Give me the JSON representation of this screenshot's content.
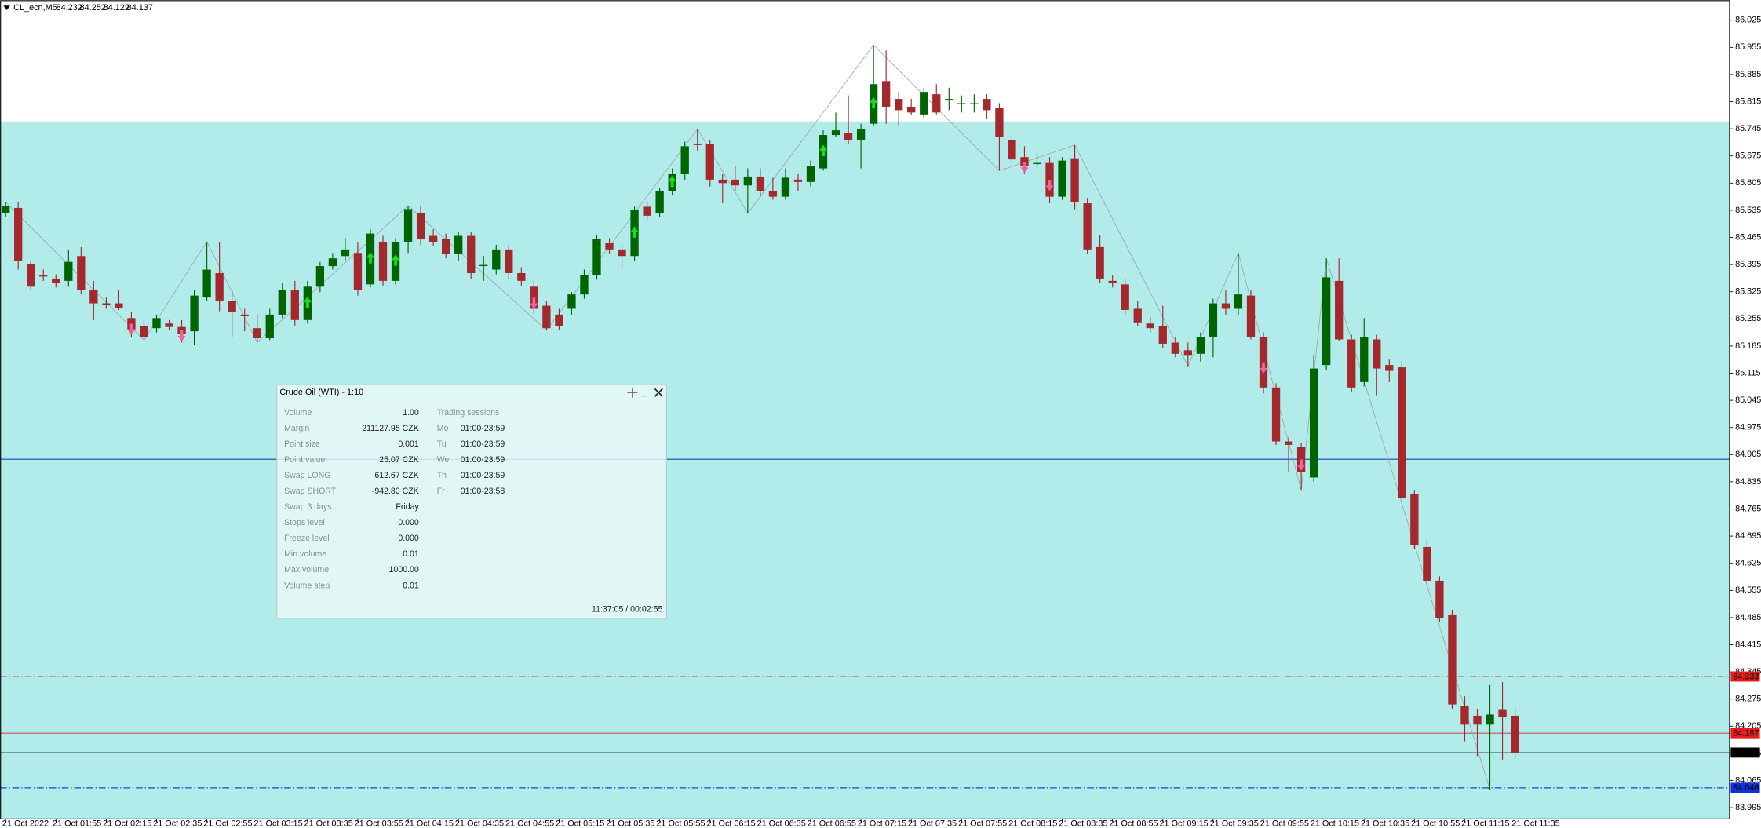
{
  "chart_data": {
    "type": "candlestick",
    "symbol": "CL_ecn,M5",
    "up_color": "#006400",
    "down_color": "#a4282c",
    "ylim": [
      83.966,
      86.071
    ],
    "yticks": [
      86.025,
      85.955,
      85.885,
      85.815,
      85.745,
      85.675,
      85.605,
      85.535,
      85.465,
      85.395,
      85.325,
      85.255,
      85.185,
      85.115,
      85.045,
      84.975,
      84.905,
      84.835,
      84.765,
      84.695,
      84.625,
      84.555,
      84.485,
      84.415,
      84.345,
      84.275,
      84.205,
      84.135,
      84.065,
      83.995
    ],
    "categories": [
      "21 Oct 2022",
      null,
      null,
      null,
      "21 Oct 01:55",
      null,
      null,
      null,
      "21 Oct 02:15",
      null,
      null,
      null,
      "21 Oct 02:35",
      null,
      null,
      null,
      "21 Oct 02:55",
      null,
      null,
      null,
      "21 Oct 03:15",
      null,
      null,
      null,
      "21 Oct 03:35",
      null,
      null,
      null,
      "21 Oct 03:55",
      null,
      null,
      null,
      "21 Oct 04:15",
      null,
      null,
      null,
      "21 Oct 04:35",
      null,
      null,
      null,
      "21 Oct 04:55",
      null,
      null,
      null,
      "21 Oct 05:15",
      null,
      null,
      null,
      "21 Oct 05:35",
      null,
      null,
      null,
      "21 Oct 05:55",
      null,
      null,
      null,
      "21 Oct 06:15",
      null,
      null,
      null,
      "21 Oct 06:35",
      null,
      null,
      null,
      "21 Oct 06:55",
      null,
      null,
      null,
      "21 Oct 07:15",
      null,
      null,
      null,
      "21 Oct 07:35",
      null,
      null,
      null,
      "21 Oct 07:55",
      null,
      null,
      null,
      "21 Oct 08:15",
      null,
      null,
      null,
      "21 Oct 08:35",
      null,
      null,
      null,
      "21 Oct 08:55",
      null,
      null,
      null,
      "21 Oct 09:15",
      null,
      null,
      null,
      "21 Oct 09:35",
      null,
      null,
      null,
      "21 Oct 09:55",
      null,
      null,
      null,
      "21 Oct 10:15",
      null,
      null,
      null,
      "21 Oct 10:35",
      null,
      null,
      null,
      "21 Oct 10:55",
      null,
      null,
      null,
      "21 Oct 11:15",
      null,
      null,
      null,
      "21 Oct 11:35"
    ],
    "candles": [
      [
        85.527,
        85.556,
        85.518,
        85.547
      ],
      [
        85.541,
        85.556,
        85.382,
        85.405
      ],
      [
        85.396,
        85.405,
        85.33,
        85.338
      ],
      [
        85.367,
        85.382,
        85.353,
        85.365
      ],
      [
        85.359,
        85.37,
        85.336,
        85.347
      ],
      [
        85.353,
        85.434,
        85.338,
        85.402
      ],
      [
        85.417,
        85.44,
        85.318,
        85.33
      ],
      [
        85.33,
        85.353,
        85.252,
        85.295
      ],
      [
        85.295,
        85.31,
        85.281,
        85.292
      ],
      [
        85.295,
        85.33,
        85.278,
        85.283
      ],
      [
        85.257,
        85.272,
        85.208,
        85.228
      ],
      [
        85.237,
        85.252,
        85.2,
        85.208
      ],
      [
        85.231,
        85.266,
        85.22,
        85.257
      ],
      [
        85.243,
        85.252,
        85.226,
        85.234
      ],
      [
        85.234,
        85.252,
        85.194,
        85.217
      ],
      [
        85.223,
        85.33,
        85.188,
        85.315
      ],
      [
        85.31,
        85.454,
        85.301,
        85.382
      ],
      [
        85.373,
        85.454,
        85.275,
        85.301
      ],
      [
        85.301,
        85.33,
        85.208,
        85.272
      ],
      [
        85.266,
        85.281,
        85.223,
        85.263
      ],
      [
        85.231,
        85.266,
        85.194,
        85.205
      ],
      [
        85.205,
        85.281,
        85.2,
        85.266
      ],
      [
        85.266,
        85.347,
        85.257,
        85.33
      ],
      [
        85.33,
        85.353,
        85.237,
        85.252
      ],
      [
        85.252,
        85.353,
        85.243,
        85.338
      ],
      [
        85.338,
        85.402,
        85.324,
        85.391
      ],
      [
        85.391,
        85.425,
        85.382,
        85.411
      ],
      [
        85.417,
        85.463,
        85.405,
        85.434
      ],
      [
        85.425,
        85.454,
        85.315,
        85.33
      ],
      [
        85.344,
        85.486,
        85.336,
        85.475
      ],
      [
        85.454,
        85.469,
        85.341,
        85.353
      ],
      [
        85.353,
        85.463,
        85.344,
        85.454
      ],
      [
        85.454,
        85.547,
        85.425,
        85.538
      ],
      [
        85.527,
        85.547,
        85.446,
        85.46
      ],
      [
        85.469,
        85.486,
        85.443,
        85.454
      ],
      [
        85.46,
        85.475,
        85.411,
        85.422
      ],
      [
        85.422,
        85.48,
        85.405,
        85.469
      ],
      [
        85.469,
        85.48,
        85.359,
        85.373
      ],
      [
        85.394,
        85.417,
        85.353,
        85.394
      ],
      [
        85.382,
        85.446,
        85.37,
        85.434
      ],
      [
        85.434,
        85.446,
        85.359,
        85.373
      ],
      [
        85.373,
        85.388,
        85.341,
        85.353
      ],
      [
        85.338,
        85.353,
        85.266,
        85.281
      ],
      [
        85.289,
        85.301,
        85.226,
        85.231
      ],
      [
        85.266,
        85.281,
        85.226,
        85.237
      ],
      [
        85.281,
        85.324,
        85.266,
        85.318
      ],
      [
        85.318,
        85.382,
        85.307,
        85.367
      ],
      [
        85.367,
        85.472,
        85.356,
        85.46
      ],
      [
        85.451,
        85.463,
        85.422,
        85.434
      ],
      [
        85.434,
        85.446,
        85.382,
        85.417
      ],
      [
        85.417,
        85.544,
        85.405,
        85.535
      ],
      [
        85.544,
        85.559,
        85.51,
        85.521
      ],
      [
        85.527,
        85.593,
        85.518,
        85.585
      ],
      [
        85.585,
        85.643,
        85.573,
        85.628
      ],
      [
        85.628,
        85.712,
        85.614,
        85.7
      ],
      [
        85.706,
        85.744,
        85.689,
        85.703
      ],
      [
        85.706,
        85.715,
        85.596,
        85.614
      ],
      [
        85.614,
        85.628,
        85.553,
        85.605
      ],
      [
        85.614,
        85.648,
        85.585,
        85.599
      ],
      [
        85.599,
        85.643,
        85.527,
        85.622
      ],
      [
        85.622,
        85.643,
        85.57,
        85.585
      ],
      [
        85.585,
        85.619,
        85.562,
        85.57
      ],
      [
        85.57,
        85.643,
        85.562,
        85.619
      ],
      [
        85.614,
        85.628,
        85.585,
        85.608
      ],
      [
        85.608,
        85.663,
        85.596,
        85.648
      ],
      [
        85.643,
        85.741,
        85.637,
        85.729
      ],
      [
        85.729,
        85.787,
        85.724,
        85.741
      ],
      [
        85.735,
        85.831,
        85.706,
        85.715
      ],
      [
        85.715,
        85.758,
        85.643,
        85.744
      ],
      [
        85.758,
        85.961,
        85.753,
        85.86
      ],
      [
        85.868,
        85.947,
        85.758,
        85.802
      ],
      [
        85.822,
        85.84,
        85.753,
        85.793
      ],
      [
        85.802,
        85.822,
        85.782,
        85.787
      ],
      [
        85.782,
        85.851,
        85.773,
        85.84
      ],
      [
        85.834,
        85.86,
        85.782,
        85.787
      ],
      [
        85.822,
        85.851,
        85.793,
        85.822
      ],
      [
        85.811,
        85.831,
        85.787,
        85.811
      ],
      [
        85.811,
        85.834,
        85.787,
        85.811
      ],
      [
        85.822,
        85.834,
        85.77,
        85.793
      ],
      [
        85.799,
        85.811,
        85.637,
        85.724
      ],
      [
        85.715,
        85.729,
        85.657,
        85.666
      ],
      [
        85.672,
        85.7,
        85.628,
        85.648
      ],
      [
        85.657,
        85.689,
        85.643,
        85.657
      ],
      [
        85.657,
        85.672,
        85.553,
        85.57
      ],
      [
        85.57,
        85.672,
        85.562,
        85.663
      ],
      [
        85.669,
        85.703,
        85.538,
        85.556
      ],
      [
        85.553,
        85.567,
        85.422,
        85.434
      ],
      [
        85.44,
        85.472,
        85.347,
        85.359
      ],
      [
        85.353,
        85.367,
        85.336,
        85.347
      ],
      [
        85.344,
        85.359,
        85.266,
        85.278
      ],
      [
        85.281,
        85.301,
        85.237,
        85.246
      ],
      [
        85.243,
        85.26,
        85.22,
        85.231
      ],
      [
        85.237,
        85.289,
        85.179,
        85.191
      ],
      [
        85.194,
        85.208,
        85.156,
        85.165
      ],
      [
        85.174,
        85.194,
        85.133,
        85.162
      ],
      [
        85.165,
        85.22,
        85.145,
        85.208
      ],
      [
        85.208,
        85.307,
        85.156,
        85.295
      ],
      [
        85.295,
        85.33,
        85.266,
        85.281
      ],
      [
        85.281,
        85.425,
        85.266,
        85.318
      ],
      [
        85.315,
        85.33,
        85.202,
        85.208
      ],
      [
        85.208,
        85.22,
        85.063,
        85.078
      ],
      [
        85.078,
        85.089,
        84.93,
        84.939
      ],
      [
        84.939,
        84.95,
        84.861,
        84.93
      ],
      [
        84.924,
        84.936,
        84.814,
        84.861
      ],
      [
        84.846,
        85.162,
        84.835,
        85.127
      ],
      [
        85.136,
        85.411,
        85.124,
        85.362
      ],
      [
        85.353,
        85.411,
        85.197,
        85.202
      ],
      [
        85.202,
        85.214,
        85.066,
        85.078
      ],
      [
        85.092,
        85.257,
        85.081,
        85.208
      ],
      [
        85.202,
        85.214,
        85.058,
        85.127
      ],
      [
        85.136,
        85.15,
        85.092,
        85.121
      ],
      [
        85.13,
        85.145,
        84.791,
        84.794
      ],
      [
        84.803,
        84.814,
        84.661,
        84.672
      ],
      [
        84.667,
        84.687,
        84.568,
        84.58
      ],
      [
        84.58,
        84.591,
        84.473,
        84.484
      ],
      [
        84.493,
        84.505,
        84.25,
        84.261
      ],
      [
        84.258,
        84.282,
        84.166,
        84.209
      ],
      [
        84.232,
        84.25,
        84.128,
        84.209
      ],
      [
        84.209,
        84.311,
        84.041,
        84.235
      ],
      [
        84.247,
        84.319,
        84.119,
        84.229
      ],
      [
        84.232,
        84.252,
        84.122,
        84.137
      ]
    ],
    "zone": {
      "top": 85.764,
      "color": "#b1ebea"
    },
    "zigzag": {
      "color": "#9aa8a8",
      "x": [
        0,
        11,
        16,
        20,
        32,
        43,
        55,
        59,
        69,
        79,
        85,
        94,
        98,
        103,
        105,
        118
      ],
      "values": [
        85.556,
        85.2,
        85.454,
        85.194,
        85.547,
        85.226,
        85.744,
        85.527,
        85.961,
        85.637,
        85.703,
        85.133,
        85.425,
        84.814,
        85.411,
        84.041
      ]
    },
    "up_arrows": [
      24,
      29,
      31,
      50,
      53,
      65,
      69
    ],
    "down_arrows": [
      10,
      14,
      42,
      81,
      83,
      100,
      103
    ],
    "up_arrow_color": "#16e01a",
    "down_arrow_color": "#f0609c",
    "hlines": [
      {
        "value": 84.893,
        "color": "#1c3fc4",
        "dash": "solid",
        "tag": false
      },
      {
        "value": 84.333,
        "color": "#d04848",
        "dash": "dashdot",
        "tag": true,
        "tag_color": "#e81c1c"
      },
      {
        "value": 84.187,
        "color": "#c85050",
        "dash": "solid",
        "tag": true,
        "tag_color": "#e81c1c"
      },
      {
        "value": 84.137,
        "color": "#5a6a6a",
        "dash": "solid",
        "tag": true,
        "tag_color": "#000000"
      },
      {
        "value": 84.046,
        "color": "#2040e0",
        "dash": "dashdot",
        "tag": true,
        "tag_color": "#1030d8"
      }
    ]
  },
  "info_panel": {
    "title": "Crude Oil (WTI) - 1:10",
    "rows": [
      [
        "Volume",
        "1.00"
      ],
      [
        "Margin",
        "211127.95 CZK"
      ],
      [
        "Point size",
        "0.001"
      ],
      [
        "Point value",
        "25.07 CZK"
      ],
      [
        "Swap LONG",
        "612.67 CZK"
      ],
      [
        "Swap SHORT",
        "-942.80 CZK"
      ],
      [
        "Swap 3 days",
        "Friday"
      ],
      [
        "Stops level",
        "0.000"
      ],
      [
        "Freeze level",
        "0.000"
      ],
      [
        "Min.volume",
        "0.01"
      ],
      [
        "Max.volume",
        "1000.00"
      ],
      [
        "Volume step",
        "0.01"
      ]
    ],
    "sessions_title": "Trading sessions",
    "sessions": [
      [
        "Mo",
        "01:00-23:59"
      ],
      [
        "Tu",
        "01:00-23:59"
      ],
      [
        "We",
        "01:00-23:59"
      ],
      [
        "Th",
        "01:00-23:59"
      ],
      [
        "Fr",
        "01:00-23:58"
      ]
    ],
    "time": "11:37:05 / 00:02:55"
  }
}
